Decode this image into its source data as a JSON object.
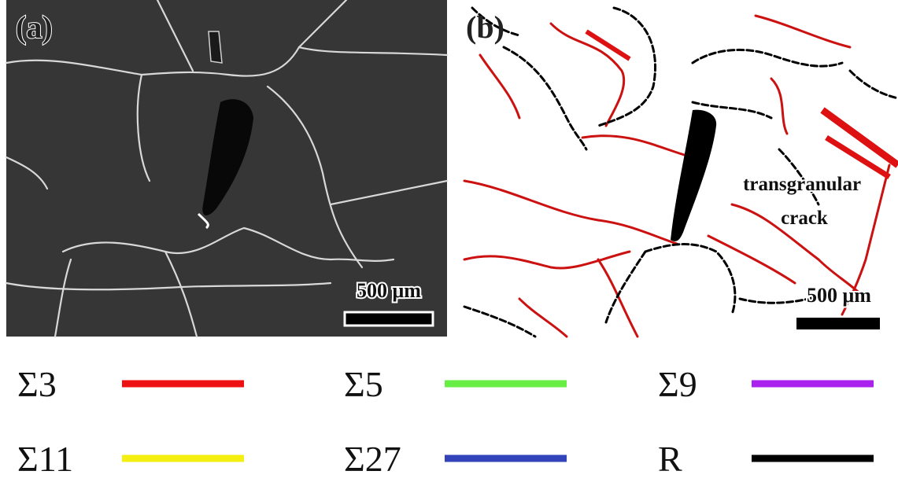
{
  "panels": [
    {
      "label": "(a)",
      "scale_bar": "500 μm"
    },
    {
      "label": "(b)",
      "scale_bar": "500 μm",
      "annotation": [
        "transgranular",
        "crack"
      ]
    }
  ],
  "legend": [
    {
      "label": "Σ3",
      "color": "#ee1111"
    },
    {
      "label": "Σ5",
      "color": "#66ee44"
    },
    {
      "label": "Σ9",
      "color": "#aa22ee"
    },
    {
      "label": "Σ11",
      "color": "#f5ee11"
    },
    {
      "label": "Σ27",
      "color": "#3344bb"
    },
    {
      "label": "R",
      "color": "#000000"
    }
  ]
}
